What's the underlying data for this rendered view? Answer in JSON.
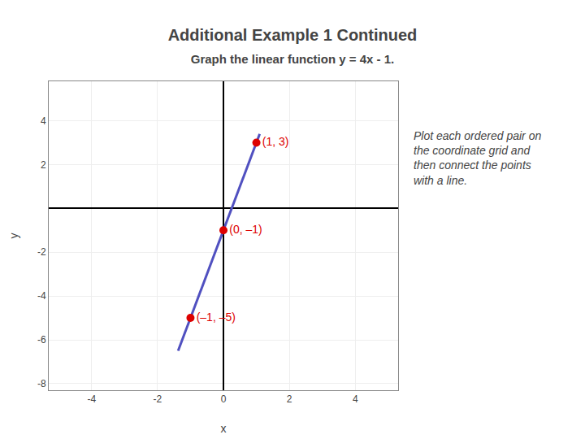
{
  "chart_data": {
    "type": "scatter",
    "title": "Additional Example 1 Continued",
    "subtitle": "Graph the linear function y = 4x - 1.",
    "x_label": "x",
    "y_label": "y",
    "annotation": "Plot each ordered pair on\nthe coordinate grid and\nthen connect the points\nwith a line.",
    "xlim": [
      -5.3,
      5.3
    ],
    "ylim": [
      -8.3,
      5.8
    ],
    "xticks": [
      -4,
      -2,
      0,
      2,
      4
    ],
    "yticks": [
      -8,
      -6,
      -4,
      -2,
      2,
      4
    ],
    "grid": true,
    "series": [
      {
        "type": "line",
        "x": [
          -1.375,
          1.1
        ],
        "values": [
          -6.5,
          3.4
        ],
        "color": "#5050C0"
      },
      {
        "type": "scatter",
        "x": [
          1,
          0,
          -1
        ],
        "values": [
          3,
          -1,
          -5
        ],
        "color": "#DD0000",
        "labels": [
          "(1, 3)",
          "(0, –1)",
          "(–1, –5)"
        ]
      }
    ]
  }
}
